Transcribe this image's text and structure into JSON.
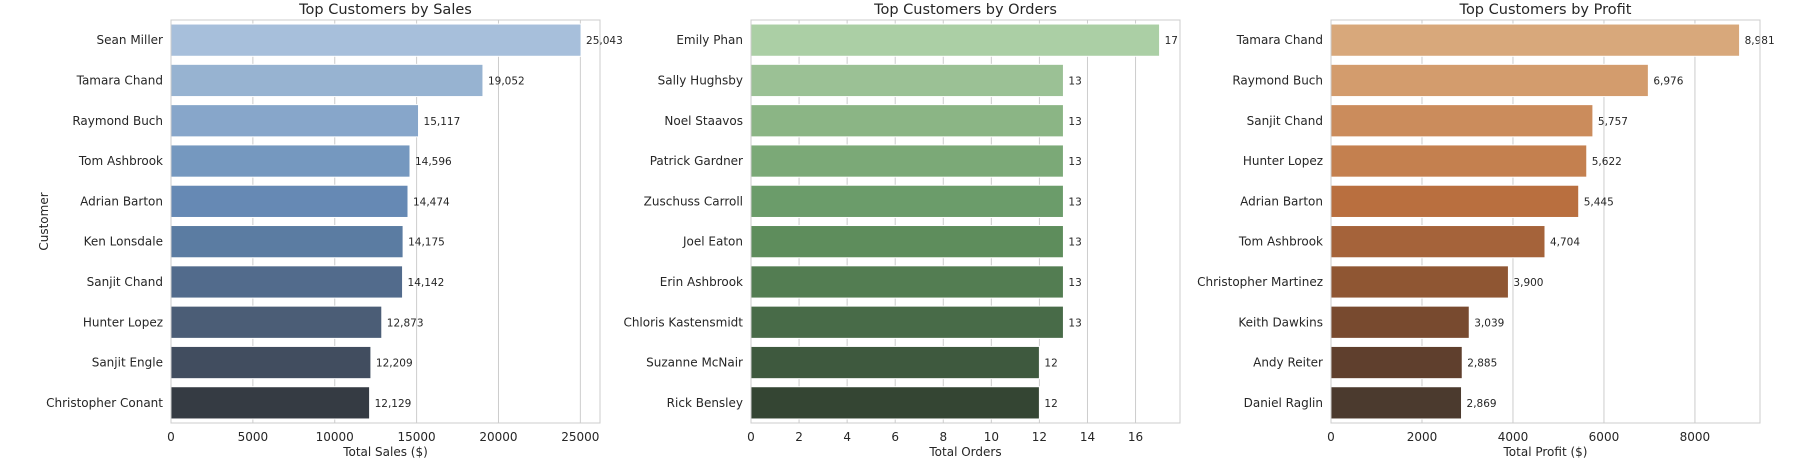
{
  "chart_data": [
    {
      "type": "bar",
      "orientation": "horizontal",
      "title": "Top Customers by Sales",
      "xlabel": "Total Sales ($)",
      "ylabel": "Customer",
      "xlim": [
        0,
        26200
      ],
      "xticks": [
        0,
        5000,
        10000,
        15000,
        20000,
        25000
      ],
      "tick_labels": [
        "0",
        "5000",
        "10000",
        "15000",
        "20000",
        "25000"
      ],
      "categories": [
        "Sean Miller",
        "Tamara Chand",
        "Raymond Buch",
        "Tom Ashbrook",
        "Adrian Barton",
        "Ken Lonsdale",
        "Sanjit Chand",
        "Hunter Lopez",
        "Sanjit Engle",
        "Christopher Conant"
      ],
      "values": [
        25043,
        19052,
        15117,
        14596,
        14474,
        14175,
        14142,
        12873,
        12209,
        12129
      ],
      "value_labels": [
        "25,043",
        "19,052",
        "15,117",
        "14,596",
        "14,474",
        "14,175",
        "14,142",
        "12,873",
        "12,209",
        "12,129"
      ],
      "colors": [
        "#a7bfdb",
        "#97b3d1",
        "#87a6ca",
        "#7598bf",
        "#6689b4",
        "#5b7ca2",
        "#526b8c",
        "#4b5d76",
        "#414d5f",
        "#353b43"
      ],
      "grid": true
    },
    {
      "type": "bar",
      "orientation": "horizontal",
      "title": "Top Customers by Orders",
      "xlabel": "Total Orders",
      "ylabel": "",
      "xlim": [
        0,
        17.85
      ],
      "xticks": [
        0,
        2,
        4,
        6,
        8,
        10,
        12,
        14,
        16
      ],
      "tick_labels": [
        "0",
        "2",
        "4",
        "6",
        "8",
        "10",
        "12",
        "14",
        "16"
      ],
      "categories": [
        "Emily Phan",
        "Sally Hughsby",
        "Noel Staavos",
        "Patrick Gardner",
        "Zuschuss Carroll",
        "Joel Eaton",
        "Erin Ashbrook",
        "Chloris Kastensmidt",
        "Suzanne McNair",
        "Rick Bensley"
      ],
      "values": [
        17,
        13,
        13,
        13,
        13,
        13,
        13,
        13,
        12,
        12
      ],
      "value_labels": [
        "17",
        "13",
        "13",
        "13",
        "13",
        "13",
        "13",
        "13",
        "12",
        "12"
      ],
      "colors": [
        "#abcfa5",
        "#9bc195",
        "#8bb585",
        "#7ba977",
        "#6b9c6a",
        "#5e8d5c",
        "#537d52",
        "#486b48",
        "#3e593e",
        "#344533"
      ],
      "grid": true
    },
    {
      "type": "bar",
      "orientation": "horizontal",
      "title": "Top Customers by Profit",
      "xlabel": "Total Profit ($)",
      "ylabel": "",
      "xlim": [
        0,
        9430
      ],
      "xticks": [
        0,
        2000,
        4000,
        6000,
        8000
      ],
      "tick_labels": [
        "0",
        "2000",
        "4000",
        "6000",
        "8000"
      ],
      "categories": [
        "Tamara Chand",
        "Raymond Buch",
        "Sanjit Chand",
        "Hunter Lopez",
        "Adrian Barton",
        "Tom Ashbrook",
        "Christopher Martinez",
        "Keith Dawkins",
        "Andy Reiter",
        "Daniel Raglin"
      ],
      "values": [
        8981,
        6976,
        5757,
        5622,
        5445,
        4704,
        3900,
        3039,
        2885,
        2869
      ],
      "value_labels": [
        "8,981",
        "6,976",
        "5,757",
        "5,622",
        "5,445",
        "4,704",
        "3,900",
        "3,039",
        "2,885",
        "2,869"
      ],
      "colors": [
        "#d8a87b",
        "#d39c6d",
        "#cb8c5c",
        "#c4804f",
        "#b96f3f",
        "#a5633a",
        "#8f5633",
        "#784a2f",
        "#5f3f2d",
        "#4b3a2e"
      ],
      "grid": true
    }
  ]
}
